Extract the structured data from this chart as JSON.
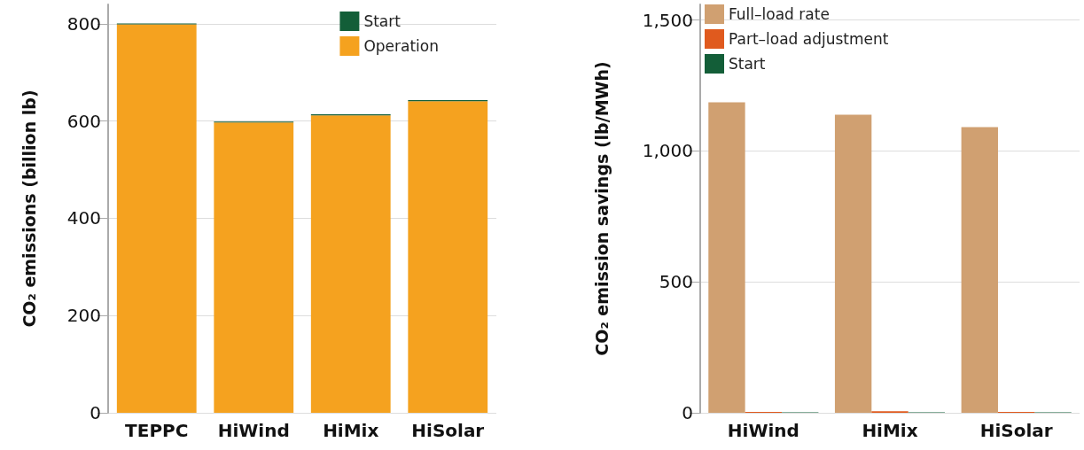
{
  "chart_data": [
    {
      "type": "bar",
      "stacked": true,
      "ylabel": "CO₂ emissions (billion lb)",
      "categories": [
        "TEPPC",
        "HiWind",
        "HiMix",
        "HiSolar"
      ],
      "series": [
        {
          "name": "Operation",
          "color": "#f5a21f",
          "values": [
            799,
            597,
            612,
            641
          ]
        },
        {
          "name": "Start",
          "color": "#135e38",
          "values": [
            2,
            2,
            2,
            2
          ]
        }
      ],
      "ylim": [
        0,
        840
      ],
      "yticks": [
        0,
        200,
        400,
        600,
        800
      ],
      "grid": "y",
      "legend": "top right"
    },
    {
      "type": "bar",
      "ylabel": "CO₂ emission savings (lb/MWh)",
      "categories": [
        "HiWind",
        "HiMix",
        "HiSolar"
      ],
      "series": [
        {
          "name": "Full–load rate",
          "color": "#d0a071",
          "values": [
            1186,
            1139,
            1091
          ]
        },
        {
          "name": "Part–load adjustment",
          "color": "#e05a1e",
          "values": [
            3,
            6,
            3
          ]
        },
        {
          "name": "Start",
          "color": "#135e38",
          "values": [
            2,
            2,
            2
          ]
        }
      ],
      "ylim": [
        0,
        1560
      ],
      "yticks": [
        0,
        500,
        {
          "value": 1000,
          "label": "1,000"
        },
        {
          "value": 1500,
          "label": "1,500"
        }
      ],
      "grid": "y",
      "legend": "top left"
    }
  ]
}
